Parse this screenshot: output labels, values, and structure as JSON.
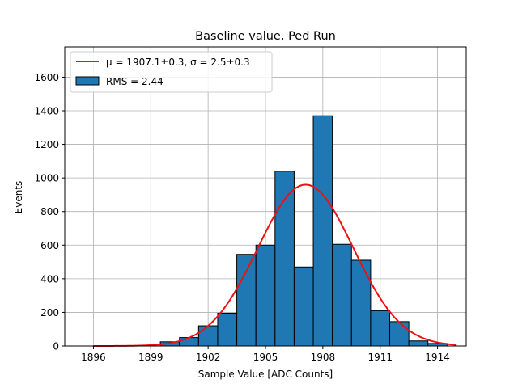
{
  "chart_data": {
    "type": "bar",
    "title": "Baseline value, Ped Run",
    "xlabel": "Sample Value [ADC Counts]",
    "ylabel": "Events",
    "xlim": [
      1894.5,
      1915.5
    ],
    "ylim": [
      0,
      1780
    ],
    "xticks": [
      1896,
      1899,
      1902,
      1905,
      1908,
      1911,
      1914
    ],
    "yticks": [
      0,
      200,
      400,
      600,
      800,
      1000,
      1200,
      1400,
      1600
    ],
    "grid": true,
    "legend_position": "top-left",
    "bin_width": 1,
    "histogram": {
      "name": "RMS = 2.44",
      "color": "#1f77b4",
      "edgecolor": "#000000",
      "bins": [
        {
          "start": 1899.5,
          "value": 25
        },
        {
          "start": 1900.5,
          "value": 50
        },
        {
          "start": 1901.5,
          "value": 120
        },
        {
          "start": 1902.5,
          "value": 195
        },
        {
          "start": 1903.5,
          "value": 545
        },
        {
          "start": 1904.5,
          "value": 600
        },
        {
          "start": 1905.5,
          "value": 1040
        },
        {
          "start": 1906.5,
          "value": 470
        },
        {
          "start": 1907.5,
          "value": 1370
        },
        {
          "start": 1908.5,
          "value": 605
        },
        {
          "start": 1909.5,
          "value": 510
        },
        {
          "start": 1910.5,
          "value": 210
        },
        {
          "start": 1911.5,
          "value": 145
        },
        {
          "start": 1912.5,
          "value": 30
        },
        {
          "start": 1913.5,
          "value": 15
        }
      ]
    },
    "fit": {
      "name": "μ = 1907.1±0.3, σ = 2.5±0.3",
      "color": "#ee1111",
      "mu": 1907.1,
      "sigma": 2.5,
      "amplitude": 960,
      "x_range": [
        1896,
        1915
      ]
    }
  }
}
